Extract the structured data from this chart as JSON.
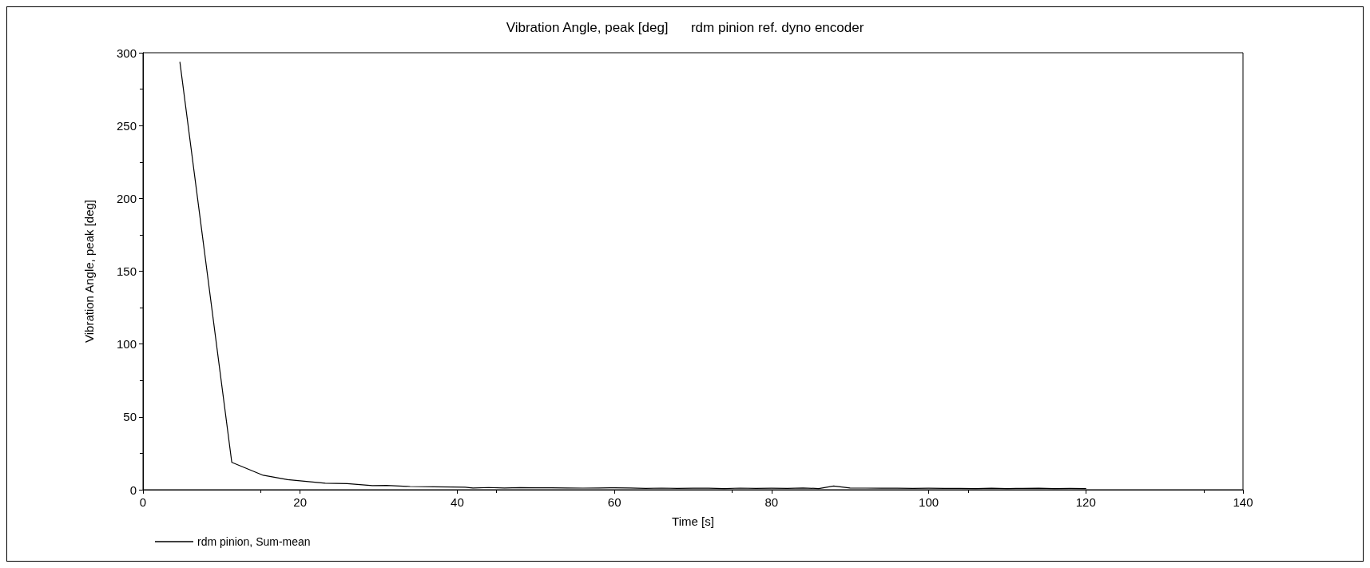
{
  "chart_data": {
    "type": "line",
    "title": "Vibration Angle, peak [deg]      rdm pinion ref. dyno encoder",
    "xlabel": "Time [s]",
    "ylabel": "Vibration Angle, peak [deg]",
    "xlim": [
      0,
      140
    ],
    "xticks": [
      0,
      20,
      40,
      60,
      80,
      100,
      120,
      140
    ],
    "ylim": [
      0,
      300
    ],
    "yticks": [
      0,
      50,
      100,
      150,
      200,
      250,
      300
    ],
    "grid": false,
    "legend": "bottom left",
    "marker": "none",
    "line_style": "solid",
    "series": [
      {
        "name": "rdm pinion, Sum-mean",
        "color": "#000000",
        "x": [
          4.7,
          11.3,
          15.3,
          18.4,
          23.2,
          26,
          29.2,
          31,
          34,
          37,
          39.3,
          41,
          42,
          44,
          46,
          48,
          50,
          52,
          54,
          56,
          58,
          60,
          62,
          64,
          66,
          68,
          70,
          72,
          74,
          76,
          78,
          80,
          82,
          84,
          86,
          87.9,
          90,
          92,
          94,
          96,
          98,
          100,
          102,
          104,
          106,
          108,
          110,
          112,
          114,
          116,
          118,
          120
        ],
        "values": [
          293.5,
          18.8,
          9.9,
          6.9,
          4.5,
          4.2,
          2.8,
          3,
          2.2,
          2,
          1.8,
          1.7,
          1.2,
          1.5,
          1.2,
          1.4,
          1.3,
          1.3,
          1.2,
          1.1,
          1.2,
          1.3,
          1.2,
          0.9,
          1.1,
          0.9,
          1,
          1,
          0.8,
          1.1,
          0.9,
          1,
          0.9,
          1.2,
          0.8,
          2.5,
          1.2,
          1.1,
          1,
          1,
          0.9,
          1,
          0.9,
          0.9,
          0.8,
          1,
          0.8,
          0.9,
          1,
          0.8,
          0.9,
          0.8
        ]
      }
    ]
  }
}
